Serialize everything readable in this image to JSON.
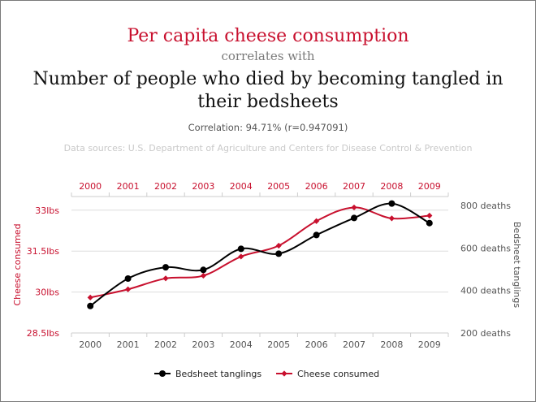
{
  "header": {
    "title_a": "Per capita cheese consumption",
    "connector": "correlates with",
    "title_b": "Number of people who died by becoming tangled in their bedsheets",
    "correlation": "Correlation: 94.71% (r=0.947091)",
    "sources": "Data sources: U.S. Department of Agriculture and Centers for Disease Control & Prevention"
  },
  "colors": {
    "cheese": "#c8102e",
    "bedsheet": "#000000",
    "grid": "#dddddd",
    "axis_text": "#555555"
  },
  "chart_data": {
    "type": "line",
    "x": [
      "2000",
      "2001",
      "2002",
      "2003",
      "2004",
      "2005",
      "2006",
      "2007",
      "2008",
      "2009"
    ],
    "y_left": {
      "label": "Cheese consumed",
      "ticks": [
        "28.5lbs",
        "30lbs",
        "31.5lbs",
        "33lbs"
      ],
      "tick_values": [
        28.5,
        30,
        31.5,
        33
      ],
      "range": [
        28.5,
        33.5
      ]
    },
    "y_right": {
      "label": "Bedsheet tanglings",
      "ticks": [
        "200 deaths",
        "400 deaths",
        "600 deaths",
        "800 deaths"
      ],
      "tick_values": [
        200,
        400,
        600,
        800
      ],
      "range": [
        200,
        842
      ]
    },
    "series": [
      {
        "name": "Bedsheet tanglings",
        "axis": "right",
        "color": "#000000",
        "marker": "circle",
        "values": [
          327,
          456,
          509,
          497,
          596,
          573,
          661,
          741,
          809,
          717
        ]
      },
      {
        "name": "Cheese consumed",
        "axis": "left",
        "color": "#c8102e",
        "marker": "diamond",
        "values": [
          29.8,
          30.1,
          30.5,
          30.6,
          31.3,
          31.7,
          32.6,
          33.1,
          32.7,
          32.8
        ]
      }
    ],
    "grid": "horizontal",
    "legend_position": "bottom"
  }
}
